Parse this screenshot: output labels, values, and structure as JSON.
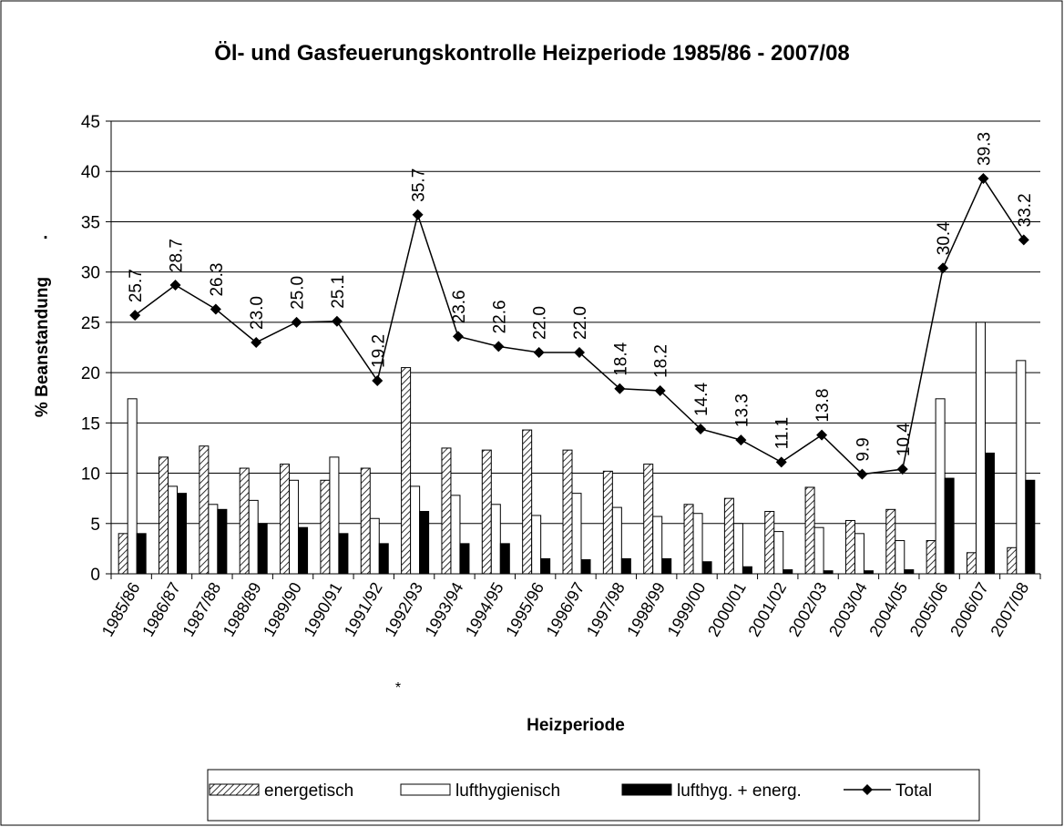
{
  "chart_data": {
    "type": "bar-line",
    "title": "Öl- und Gasfeuerungskontrolle Heizperiode 1985/86 - 2007/08",
    "ylabel": "% Beanstandung",
    "xlabel": "Heizperiode",
    "annotations": [
      "*",
      "."
    ],
    "categories": [
      "1985/86",
      "1986/87",
      "1987/88",
      "1988/89",
      "1989/90",
      "1990/91",
      "1991/92",
      "1992/93",
      "1993/94",
      "1994/95",
      "1995/96",
      "1996/97",
      "1997/98",
      "1998/99",
      "1999/00",
      "2000/01",
      "2001/02",
      "2002/03",
      "2003/04",
      "2004/05",
      "2005/06",
      "2006/07",
      "2007/08"
    ],
    "series": [
      {
        "name": "energetisch",
        "kind": "bar",
        "pattern": "hatch",
        "color": "#ffffff",
        "values": [
          4.0,
          11.6,
          12.7,
          10.5,
          10.9,
          9.3,
          10.5,
          20.5,
          12.5,
          12.3,
          14.3,
          12.3,
          10.2,
          10.9,
          6.9,
          7.5,
          6.2,
          8.6,
          5.3,
          6.4,
          3.3,
          2.1,
          2.6
        ]
      },
      {
        "name": "lufthygienisch",
        "kind": "bar",
        "color": "#ffffff",
        "values": [
          17.4,
          8.7,
          6.9,
          7.3,
          9.3,
          11.6,
          5.5,
          8.7,
          7.8,
          6.9,
          5.8,
          8.0,
          6.6,
          5.7,
          6.0,
          5.0,
          4.2,
          4.6,
          4.0,
          3.3,
          17.4,
          25.0,
          21.2
        ]
      },
      {
        "name": "lufthyg. + energ.",
        "kind": "bar",
        "color": "#000000",
        "values": [
          4.0,
          8.0,
          6.4,
          5.0,
          4.6,
          4.0,
          3.0,
          6.2,
          3.0,
          3.0,
          1.5,
          1.4,
          1.5,
          1.5,
          1.2,
          0.7,
          0.4,
          0.3,
          0.3,
          0.4,
          9.5,
          12.0,
          9.3
        ]
      },
      {
        "name": "Total",
        "kind": "line",
        "color": "#000000",
        "values": [
          25.7,
          28.7,
          26.3,
          23.0,
          25.0,
          25.1,
          19.2,
          35.7,
          23.6,
          22.6,
          22.0,
          22.0,
          18.4,
          18.2,
          14.4,
          13.3,
          11.1,
          13.8,
          9.9,
          10.4,
          30.4,
          39.3,
          33.2
        ],
        "value_labels": [
          "25.7",
          "28.7",
          "26.3",
          "23.0",
          "25.0",
          "25.1",
          "19.2",
          "35.7",
          "23.6",
          "22.6",
          "22.0",
          "22.0",
          "18.4",
          "18.2",
          "14.4",
          "13.3",
          "11.1",
          "13.8",
          "9.9",
          "10.4",
          "30.4",
          "39.3",
          "33.2"
        ]
      }
    ],
    "ylim": [
      0,
      45
    ],
    "yticks": [
      0,
      5,
      10,
      15,
      20,
      25,
      30,
      35,
      40,
      45
    ],
    "grid": true,
    "legend": "bottom"
  }
}
